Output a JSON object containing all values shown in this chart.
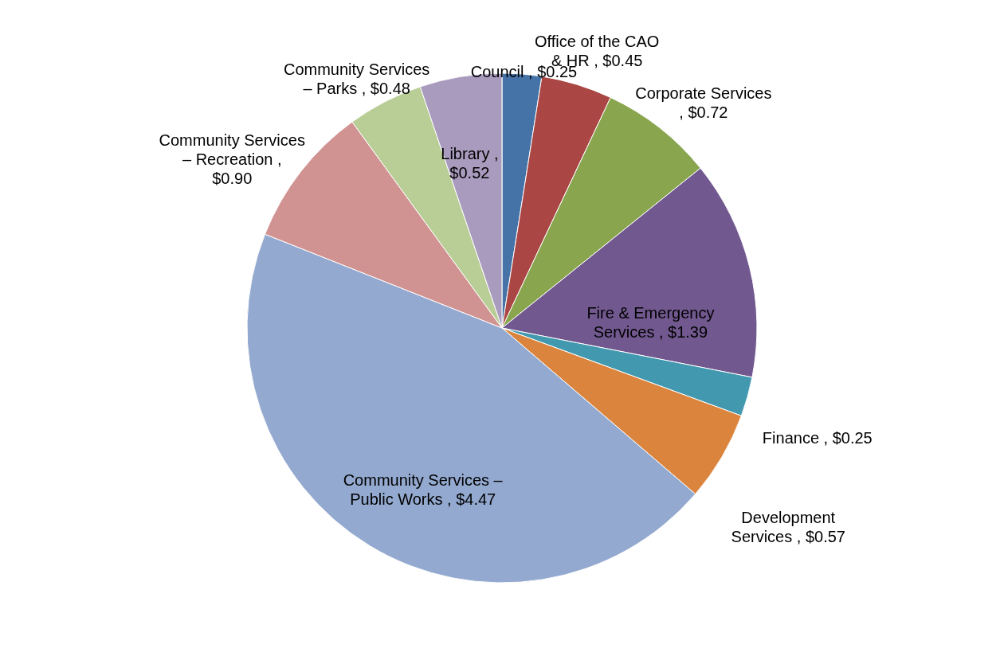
{
  "chart_data": {
    "type": "pie",
    "categories": [
      "Council",
      "Office of the CAO & HR",
      "Corporate Services",
      "Fire & Emergency Services",
      "Finance",
      "Development Services",
      "Community Services – Public Works",
      "Community Services – Recreation",
      "Community Services – Parks",
      "Library"
    ],
    "values": [
      0.25,
      0.45,
      0.72,
      1.39,
      0.25,
      0.57,
      4.47,
      0.9,
      0.48,
      0.52
    ],
    "value_labels": [
      ",  $0.25",
      ",  $0.45",
      ",  $0.72",
      ",  $1.39",
      ",  $0.25",
      ",  $0.57",
      ",  $4.47",
      ",  $0.90",
      ",  $0.48",
      ",  $0.52"
    ],
    "colors": [
      "#4572a7",
      "#aa4643",
      "#89a54e",
      "#71588f",
      "#4198af",
      "#db843d",
      "#93a9cf",
      "#d19392",
      "#b9cd96",
      "#a99bbd"
    ]
  }
}
